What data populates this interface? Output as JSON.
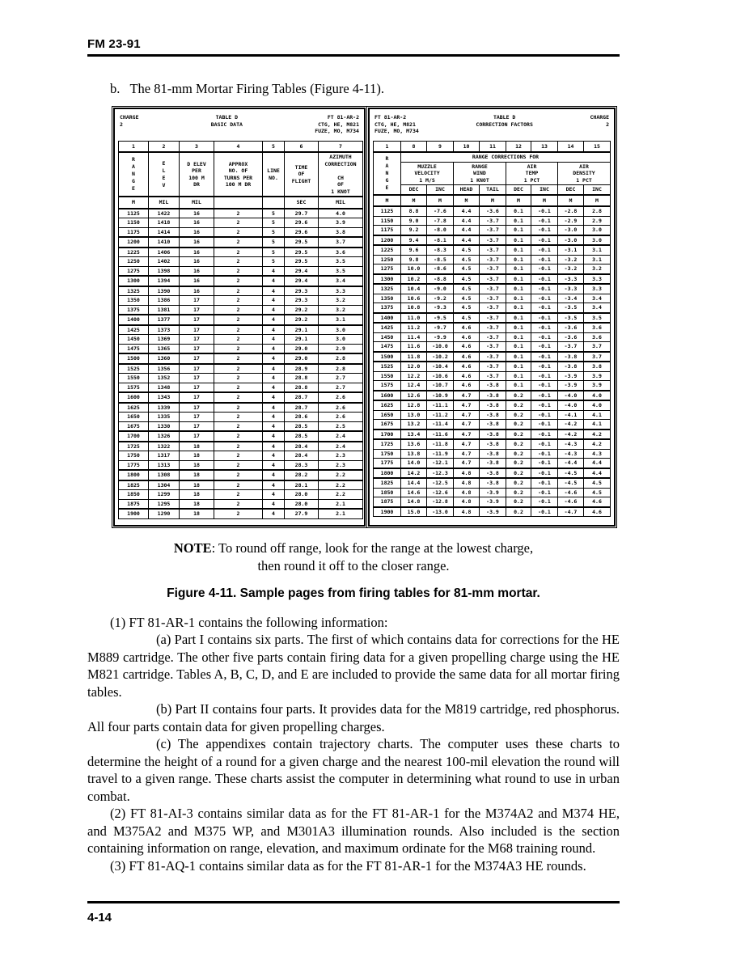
{
  "page": {
    "header": "FM 23-91",
    "intro": "b.   The 81-mm Mortar Firing Tables (Figure 4-11).",
    "note_label": "NOTE",
    "note_rest": ": To round off range, look for the range at the lowest charge,",
    "note_line2": "then round it off to the closer range.",
    "caption": "Figure 4-11.  Sample pages from firing tables for 81-mm mortar.",
    "paragraphs": [
      "(1) FT 81-AR-1 contains the following information:",
      "(a) Part I contains six parts.  The first of which contains data for corrections for the HE M889 cartridge.  The other five parts contain firing data for a given propelling charge using the HE M821 cartridge.  Tables A, B, C, D, and E are included to provide the same data for all mortar firing tables.",
      "(b) Part II contains four parts.  It provides data for the M819 cartridge, red phosphorus.  All four parts contain data for given propelling charges.",
      "(c) The appendixes contain trajectory charts.  The computer uses these charts to determine the height of a round for a given charge and the nearest 100-mil elevation the round will travel to a given range.  These charts assist the computer in determining what round to use in urban combat.",
      "(2) FT 81-AI-3 contains similar data as for the FT 81-AR-1 for the M374A2 and M374 HE, and M375A2 and M375 WP, and M301A3 illumination rounds.  Also included is the section containing information on range, elevation, and maximum ordinate for the M68 training round.",
      "(3) FT 81-AQ-1 contains similar data as for the FT 81-AR-1 for the M374A3 HE rounds."
    ],
    "footer": "4-14"
  },
  "figure": {
    "left_table": {
      "charge": "CHARGE\n2",
      "title": "TABLE D\nBASIC DATA",
      "ident": "FT 81-AR-2\nCTG, HE, M821\nFUZE, MO, M734",
      "col_nums": [
        "1",
        "2",
        "3",
        "4",
        "5",
        "6",
        "7"
      ],
      "head_range": "RANGE",
      "head_elev": "ELEV",
      "head_delev": "D ELEV\nPER\n100 M\nDR",
      "head_turns": "APPROX\nNO. OF\nTURNS PER\n100 M DR",
      "head_line": "LINE\nNO.",
      "head_tof": "TIME\nOF\nFLIGHT",
      "head_azim": "AZIMUTH\nCORRECTION\n\nCH\nOF\n1 KNOT",
      "units": [
        "M",
        "MIL",
        "MIL",
        "",
        "",
        "SEC",
        "MIL"
      ],
      "row_groups": [
        [
          [
            "1125",
            "1422",
            "16",
            "2",
            "5",
            "29.7",
            "4.0"
          ],
          [
            "1150",
            "1418",
            "16",
            "2",
            "5",
            "29.6",
            "3.9"
          ],
          [
            "1175",
            "1414",
            "16",
            "2",
            "5",
            "29.6",
            "3.8"
          ]
        ],
        [
          [
            "1200",
            "1410",
            "16",
            "2",
            "5",
            "29.5",
            "3.7"
          ]
        ],
        [
          [
            "1225",
            "1406",
            "16",
            "2",
            "5",
            "29.5",
            "3.6"
          ],
          [
            "1250",
            "1402",
            "16",
            "2",
            "5",
            "29.5",
            "3.5"
          ],
          [
            "1275",
            "1398",
            "16",
            "2",
            "4",
            "29.4",
            "3.5"
          ]
        ],
        [
          [
            "1300",
            "1394",
            "16",
            "2",
            "4",
            "29.4",
            "3.4"
          ]
        ],
        [
          [
            "1325",
            "1390",
            "16",
            "2",
            "4",
            "29.3",
            "3.3"
          ],
          [
            "1350",
            "1386",
            "17",
            "2",
            "4",
            "29.3",
            "3.2"
          ],
          [
            "1375",
            "1381",
            "17",
            "2",
            "4",
            "29.2",
            "3.2"
          ]
        ],
        [
          [
            "1400",
            "1377",
            "17",
            "2",
            "4",
            "29.2",
            "3.1"
          ]
        ],
        [
          [
            "1425",
            "1373",
            "17",
            "2",
            "4",
            "29.1",
            "3.0"
          ],
          [
            "1450",
            "1369",
            "17",
            "2",
            "4",
            "29.1",
            "3.0"
          ],
          [
            "1475",
            "1365",
            "17",
            "2",
            "4",
            "29.0",
            "2.9"
          ]
        ],
        [
          [
            "1500",
            "1360",
            "17",
            "2",
            "4",
            "29.0",
            "2.8"
          ]
        ],
        [
          [
            "1525",
            "1356",
            "17",
            "2",
            "4",
            "28.9",
            "2.8"
          ],
          [
            "1550",
            "1352",
            "17",
            "2",
            "4",
            "28.8",
            "2.7"
          ],
          [
            "1575",
            "1348",
            "17",
            "2",
            "4",
            "28.8",
            "2.7"
          ]
        ],
        [
          [
            "1600",
            "1343",
            "17",
            "2",
            "4",
            "28.7",
            "2.6"
          ]
        ],
        [
          [
            "1625",
            "1339",
            "17",
            "2",
            "4",
            "28.7",
            "2.6"
          ],
          [
            "1650",
            "1335",
            "17",
            "2",
            "4",
            "28.6",
            "2.6"
          ],
          [
            "1675",
            "1330",
            "17",
            "2",
            "4",
            "28.5",
            "2.5"
          ]
        ],
        [
          [
            "1700",
            "1326",
            "17",
            "2",
            "4",
            "28.5",
            "2.4"
          ]
        ],
        [
          [
            "1725",
            "1322",
            "18",
            "2",
            "4",
            "28.4",
            "2.4"
          ],
          [
            "1750",
            "1317",
            "18",
            "2",
            "4",
            "28.4",
            "2.3"
          ],
          [
            "1775",
            "1313",
            "18",
            "2",
            "4",
            "28.3",
            "2.3"
          ]
        ],
        [
          [
            "1800",
            "1308",
            "18",
            "2",
            "4",
            "28.2",
            "2.2"
          ]
        ],
        [
          [
            "1825",
            "1304",
            "18",
            "2",
            "4",
            "28.1",
            "2.2"
          ],
          [
            "1850",
            "1299",
            "18",
            "2",
            "4",
            "28.0",
            "2.2"
          ],
          [
            "1875",
            "1295",
            "18",
            "2",
            "4",
            "28.0",
            "2.1"
          ]
        ],
        [
          [
            "1900",
            "1290",
            "18",
            "2",
            "4",
            "27.9",
            "2.1"
          ]
        ]
      ]
    },
    "right_table": {
      "ident": "FT 81-AR-2\nCTG, HE, M821\nFUZE, MO, M734",
      "title": "TABLE D\nCORRECTION FACTORS",
      "charge": "CHARGE\n2",
      "col_nums": [
        "1",
        "8",
        "9",
        "10",
        "11",
        "12",
        "13",
        "14",
        "15"
      ],
      "head_range": "RANGE",
      "span_header": "RANGE CORRECTIONS FOR",
      "group_headers": [
        "MUZZLE\nVELOCITY\n1 M/S",
        "RANGE\nWIND\n1 KNOT",
        "AIR\nTEMP\n1 PCT",
        "AIR\nDENSITY\n1 PCT"
      ],
      "sub_headers": [
        "DEC",
        "INC",
        "HEAD",
        "TAIL",
        "DEC",
        "INC",
        "DEC",
        "INC"
      ],
      "units": [
        "M",
        "M",
        "M",
        "M",
        "M",
        "M",
        "M",
        "M",
        "M"
      ],
      "row_groups": [
        [
          [
            "1125",
            "8.8",
            "-7.6",
            "4.4",
            "-3.6",
            "0.1",
            "-0.1",
            "-2.8",
            "2.8"
          ],
          [
            "1150",
            "9.0",
            "-7.8",
            "4.4",
            "-3.7",
            "0.1",
            "-0.1",
            "-2.9",
            "2.9"
          ],
          [
            "1175",
            "9.2",
            "-8.0",
            "4.4",
            "-3.7",
            "0.1",
            "-0.1",
            "-3.0",
            "3.0"
          ]
        ],
        [
          [
            "1200",
            "9.4",
            "-8.1",
            "4.4",
            "-3.7",
            "0.1",
            "-0.1",
            "-3.0",
            "3.0"
          ]
        ],
        [
          [
            "1225",
            "9.6",
            "-8.3",
            "4.5",
            "-3.7",
            "0.1",
            "-0.1",
            "-3.1",
            "3.1"
          ],
          [
            "1250",
            "9.8",
            "-8.5",
            "4.5",
            "-3.7",
            "0.1",
            "-0.1",
            "-3.2",
            "3.1"
          ],
          [
            "1275",
            "10.0",
            "-8.6",
            "4.5",
            "-3.7",
            "0.1",
            "-0.1",
            "-3.2",
            "3.2"
          ]
        ],
        [
          [
            "1300",
            "10.2",
            "-8.8",
            "4.5",
            "-3.7",
            "0.1",
            "-0.1",
            "-3.3",
            "3.3"
          ]
        ],
        [
          [
            "1325",
            "10.4",
            "-9.0",
            "4.5",
            "-3.7",
            "0.1",
            "-0.1",
            "-3.3",
            "3.3"
          ],
          [
            "1350",
            "10.6",
            "-9.2",
            "4.5",
            "-3.7",
            "0.1",
            "-0.1",
            "-3.4",
            "3.4"
          ],
          [
            "1375",
            "10.8",
            "-9.3",
            "4.5",
            "-3.7",
            "0.1",
            "-0.1",
            "-3.5",
            "3.4"
          ]
        ],
        [
          [
            "1400",
            "11.0",
            "-9.5",
            "4.5",
            "-3.7",
            "0.1",
            "-0.1",
            "-3.5",
            "3.5"
          ]
        ],
        [
          [
            "1425",
            "11.2",
            "-9.7",
            "4.6",
            "-3.7",
            "0.1",
            "-0.1",
            "-3.6",
            "3.6"
          ],
          [
            "1450",
            "11.4",
            "-9.9",
            "4.6",
            "-3.7",
            "0.1",
            "-0.1",
            "-3.6",
            "3.6"
          ],
          [
            "1475",
            "11.6",
            "-10.0",
            "4.6",
            "-3.7",
            "0.1",
            "-0.1",
            "-3.7",
            "3.7"
          ]
        ],
        [
          [
            "1500",
            "11.8",
            "-10.2",
            "4.6",
            "-3.7",
            "0.1",
            "-0.1",
            "-3.8",
            "3.7"
          ]
        ],
        [
          [
            "1525",
            "12.0",
            "-10.4",
            "4.6",
            "-3.7",
            "0.1",
            "-0.1",
            "-3.8",
            "3.8"
          ],
          [
            "1550",
            "12.2",
            "-10.6",
            "4.6",
            "-3.7",
            "0.1",
            "-0.1",
            "-3.9",
            "3.9"
          ],
          [
            "1575",
            "12.4",
            "-10.7",
            "4.6",
            "-3.8",
            "0.1",
            "-0.1",
            "-3.9",
            "3.9"
          ]
        ],
        [
          [
            "1600",
            "12.6",
            "-10.9",
            "4.7",
            "-3.8",
            "0.2",
            "-0.1",
            "-4.0",
            "4.0"
          ]
        ],
        [
          [
            "1625",
            "12.8",
            "-11.1",
            "4.7",
            "-3.8",
            "0.2",
            "-0.1",
            "-4.0",
            "4.0"
          ],
          [
            "1650",
            "13.0",
            "-11.2",
            "4.7",
            "-3.8",
            "0.2",
            "-0.1",
            "-4.1",
            "4.1"
          ],
          [
            "1675",
            "13.2",
            "-11.4",
            "4.7",
            "-3.8",
            "0.2",
            "-0.1",
            "-4.2",
            "4.1"
          ]
        ],
        [
          [
            "1700",
            "13.4",
            "-11.6",
            "4.7",
            "-3.8",
            "0.2",
            "-0.1",
            "-4.2",
            "4.2"
          ]
        ],
        [
          [
            "1725",
            "13.6",
            "-11.8",
            "4.7",
            "-3.8",
            "0.2",
            "-0.1",
            "-4.3",
            "4.2"
          ],
          [
            "1750",
            "13.8",
            "-11.9",
            "4.7",
            "-3.8",
            "0.2",
            "-0.1",
            "-4.3",
            "4.3"
          ],
          [
            "1775",
            "14.0",
            "-12.1",
            "4.7",
            "-3.8",
            "0.2",
            "-0.1",
            "-4.4",
            "4.4"
          ]
        ],
        [
          [
            "1800",
            "14.2",
            "-12.3",
            "4.8",
            "-3.8",
            "0.2",
            "-0.1",
            "-4.5",
            "4.4"
          ]
        ],
        [
          [
            "1825",
            "14.4",
            "-12.5",
            "4.8",
            "-3.8",
            "0.2",
            "-0.1",
            "-4.5",
            "4.5"
          ],
          [
            "1850",
            "14.6",
            "-12.6",
            "4.8",
            "-3.9",
            "0.2",
            "-0.1",
            "-4.6",
            "4.5"
          ],
          [
            "1875",
            "14.8",
            "-12.8",
            "4.8",
            "-3.9",
            "0.2",
            "-0.1",
            "-4.6",
            "4.6"
          ]
        ],
        [
          [
            "1900",
            "15.0",
            "-13.0",
            "4.8",
            "-3.9",
            "0.2",
            "-0.1",
            "-4.7",
            "4.6"
          ]
        ]
      ]
    }
  }
}
